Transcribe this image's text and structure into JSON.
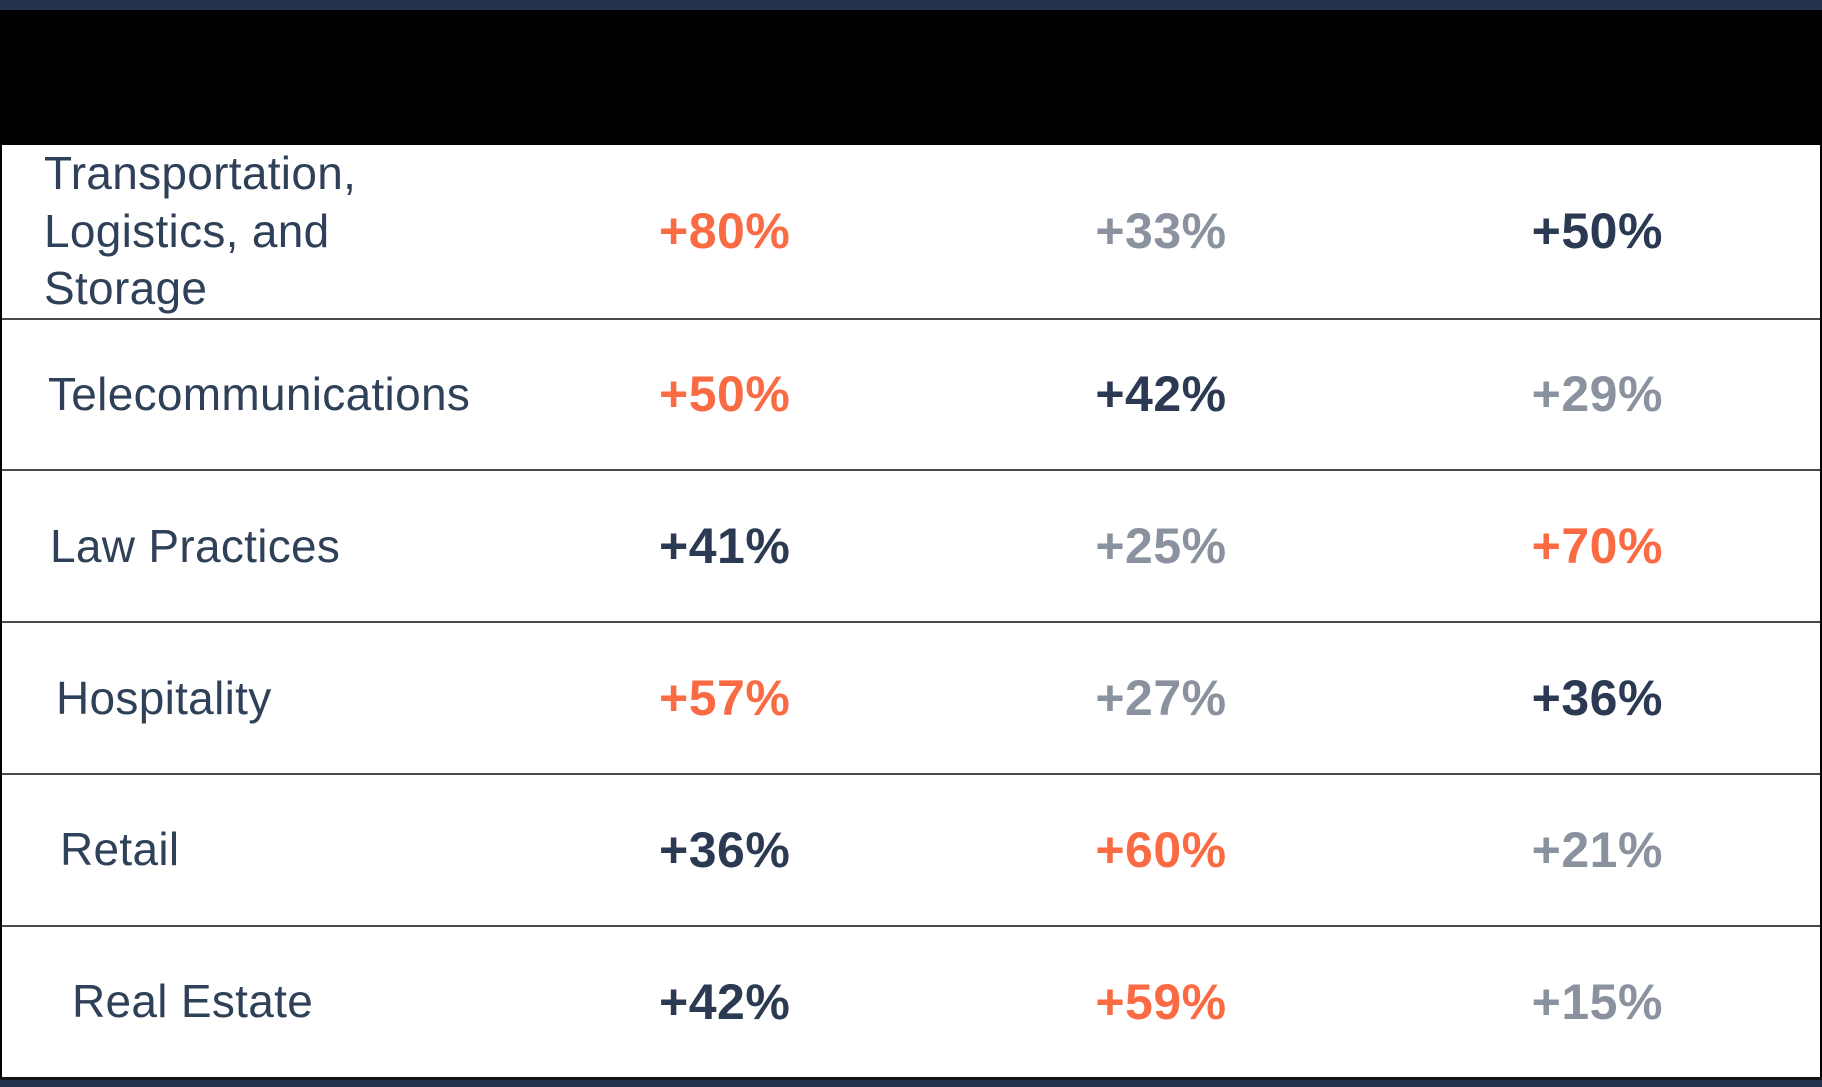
{
  "colors": {
    "accent_orange": "#FA6A43",
    "muted_gray": "#8A92A0",
    "value_navy": "#2B3A52",
    "label_navy": "#2F4158",
    "strip_navy": "#25344D",
    "separator_gray": "#4A4A4A",
    "header_black": "#000000"
  },
  "header": {
    "appearance": "solid black band (content obscured/redacted)"
  },
  "table": {
    "rows": [
      {
        "label": "Transportation, Logistics, and Storage",
        "values": [
          {
            "text": "+80%",
            "emphasis": "high"
          },
          {
            "text": "+33%",
            "emphasis": "low"
          },
          {
            "text": "+50%",
            "emphasis": "mid"
          }
        ]
      },
      {
        "label": "Telecommunications",
        "values": [
          {
            "text": "+50%",
            "emphasis": "high"
          },
          {
            "text": "+42%",
            "emphasis": "mid"
          },
          {
            "text": "+29%",
            "emphasis": "low"
          }
        ]
      },
      {
        "label": "Law Practices",
        "values": [
          {
            "text": "+41%",
            "emphasis": "mid"
          },
          {
            "text": "+25%",
            "emphasis": "low"
          },
          {
            "text": "+70%",
            "emphasis": "high"
          }
        ]
      },
      {
        "label": "Hospitality",
        "values": [
          {
            "text": "+57%",
            "emphasis": "high"
          },
          {
            "text": "+27%",
            "emphasis": "low"
          },
          {
            "text": "+36%",
            "emphasis": "mid"
          }
        ]
      },
      {
        "label": "Retail",
        "values": [
          {
            "text": "+36%",
            "emphasis": "mid"
          },
          {
            "text": "+60%",
            "emphasis": "high"
          },
          {
            "text": "+21%",
            "emphasis": "low"
          }
        ]
      },
      {
        "label": "Real Estate",
        "values": [
          {
            "text": "+42%",
            "emphasis": "mid"
          },
          {
            "text": "+59%",
            "emphasis": "high"
          },
          {
            "text": "+15%",
            "emphasis": "low"
          }
        ]
      }
    ]
  },
  "chart_data": {
    "type": "table",
    "categories": [
      "Transportation, Logistics, and Storage",
      "Telecommunications",
      "Law Practices",
      "Hospitality",
      "Retail",
      "Real Estate"
    ],
    "series": [
      {
        "name": "column_1",
        "values": [
          80,
          50,
          41,
          57,
          36,
          42
        ]
      },
      {
        "name": "column_2",
        "values": [
          33,
          42,
          25,
          27,
          60,
          59
        ]
      },
      {
        "name": "column_3",
        "values": [
          50,
          29,
          70,
          36,
          21,
          15
        ]
      }
    ],
    "value_format": "+{value}%",
    "highlight_rule": "highest value in each row rendered orange, middle value navy, lowest value gray",
    "notes": "column headers are covered by a solid black band in the image"
  }
}
